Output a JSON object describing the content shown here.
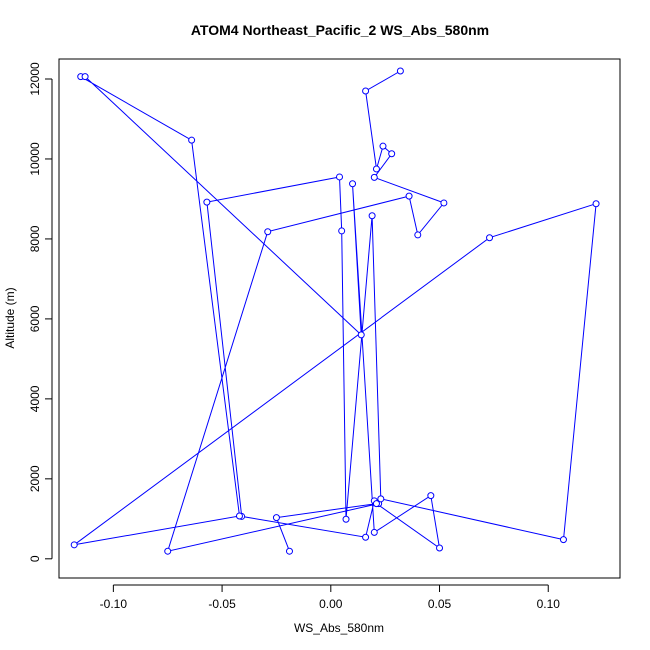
{
  "chart_data": {
    "type": "line",
    "title": "ATOM4 Northeast_Pacific_2 WS_Abs_580nm",
    "xlabel": "WS_Abs_580nm",
    "ylabel": "Altitude (m)",
    "xlim": [
      -0.125,
      0.133
    ],
    "ylim": [
      -480,
      12500
    ],
    "x_ticks": [
      -0.1,
      -0.05,
      0.0,
      0.05,
      0.1
    ],
    "x_tick_labels": [
      "-0.10",
      "-0.05",
      "0.00",
      "0.05",
      "0.10"
    ],
    "y_ticks": [
      0,
      2000,
      4000,
      6000,
      8000,
      10000,
      12000
    ],
    "y_tick_labels": [
      "0",
      "2000",
      "4000",
      "6000",
      "8000",
      "10000",
      "12000"
    ],
    "grid": false,
    "series_color": "#0000ff",
    "series": [
      {
        "x": [
          0.032,
          0.016,
          0.021,
          0.024,
          0.028,
          0.02,
          0.052,
          0.04,
          0.036,
          -0.029,
          -0.075,
          0.022,
          0.02,
          0.016,
          -0.041,
          -0.057,
          0.004,
          0.005,
          0.007,
          0.019,
          0.023,
          0.107,
          0.122,
          0.073,
          -0.118,
          -0.042,
          -0.064,
          -0.115,
          -0.113,
          0.014,
          0.01,
          0.02,
          0.046,
          0.05,
          0.021,
          -0.025,
          -0.019
        ],
        "y": [
          12200,
          11700,
          9750,
          10320,
          10130,
          9540,
          8900,
          8100,
          9070,
          8180,
          190,
          1380,
          1450,
          540,
          1060,
          8920,
          9550,
          8200,
          990,
          8580,
          1500,
          480,
          8880,
          8030,
          350,
          1070,
          10470,
          12060,
          12060,
          5600,
          9380,
          660,
          1580,
          270,
          1380,
          1030,
          190
        ]
      }
    ]
  }
}
